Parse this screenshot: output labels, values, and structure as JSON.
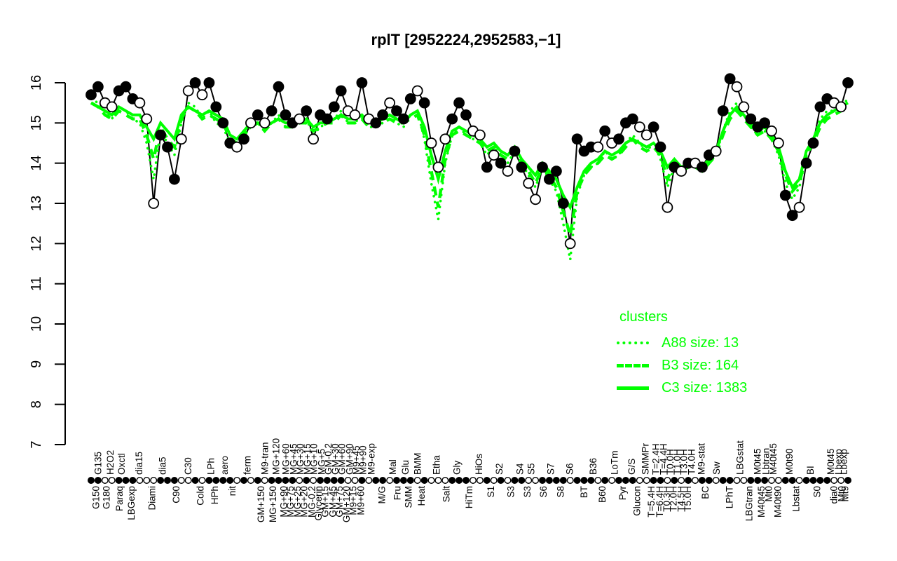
{
  "title": "rplT [2952224,2952583,−1]",
  "colors": {
    "cluster_green": "#00FF00",
    "point_black": "#000000",
    "background": "#FFFFFF"
  },
  "legend": {
    "title": "clusters",
    "entries": [
      {
        "label": "A88 size: 13",
        "style": "dotted"
      },
      {
        "label": "B3 size: 164",
        "style": "dashed"
      },
      {
        "label": "C3 size: 1383",
        "style": "solid"
      }
    ]
  },
  "chart_data": {
    "type": "line",
    "title": "rplT [2952224,2952583,−1]",
    "xlabel": "",
    "ylabel": "",
    "ylim": [
      7,
      16
    ],
    "yticks": [
      7,
      8,
      9,
      10,
      11,
      12,
      13,
      14,
      15,
      16
    ],
    "grid": false,
    "legend_position": "right-middle",
    "n_points": 110,
    "point_markers_segments": [
      "ffoofffooo",
      "fffoofofff",
      "fofofoffff",
      "ofoffffoof",
      "offofffofo",
      "oofffoofof",
      "offooffffo",
      "fffofofffo",
      "offofofoff",
      "offoofffoo",
      "ffoffffoof"
    ],
    "series": [
      {
        "name": "expression",
        "type": "line+markers",
        "style": "solid",
        "color": "#000000",
        "values": [
          15.7,
          15.9,
          15.5,
          15.4,
          15.8,
          15.9,
          15.6,
          15.5,
          15.1,
          13.0,
          14.7,
          14.4,
          13.6,
          14.6,
          15.8,
          16.0,
          15.7,
          16.0,
          15.4,
          15.0,
          14.5,
          14.4,
          14.6,
          15.0,
          15.2,
          15.0,
          15.3,
          15.9,
          15.2,
          15.0,
          15.1,
          15.3,
          14.6,
          15.2,
          15.1,
          15.4,
          15.8,
          15.3,
          15.2,
          16.0,
          15.1,
          15.0,
          15.2,
          15.5,
          15.3,
          15.1,
          15.6,
          15.8,
          15.5,
          14.5,
          13.9,
          14.6,
          15.1,
          15.5,
          15.2,
          14.8,
          14.7,
          13.9,
          14.2,
          14.0,
          13.8,
          14.3,
          13.9,
          13.5,
          13.1,
          13.9,
          13.6,
          13.8,
          13.0,
          12.0,
          14.6,
          14.3,
          14.4,
          14.4,
          14.8,
          14.5,
          14.6,
          15.0,
          15.1,
          14.9,
          14.7,
          14.9,
          14.4,
          12.9,
          13.9,
          13.8,
          14.0,
          14.0,
          13.9,
          14.2,
          14.3,
          15.3,
          16.1,
          15.9,
          15.4,
          15.1,
          14.9,
          15.0,
          14.8,
          14.5,
          13.2,
          12.7,
          12.9,
          14.0,
          14.5,
          15.4,
          15.6,
          15.5,
          15.4,
          16.0
        ]
      },
      {
        "name": "A88 size: 13",
        "type": "line",
        "style": "dotted",
        "color": "#00FF00",
        "values": [
          15.6,
          15.5,
          15.3,
          15.1,
          15.4,
          15.3,
          15.1,
          15.0,
          14.5,
          13.6,
          14.8,
          14.5,
          14.2,
          15.0,
          15.5,
          15.4,
          15.1,
          15.3,
          15.0,
          14.9,
          14.5,
          14.4,
          14.7,
          14.9,
          15.0,
          14.8,
          15.0,
          15.2,
          14.9,
          14.9,
          15.0,
          15.1,
          14.7,
          14.9,
          15.0,
          15.1,
          15.3,
          15.0,
          15.0,
          15.2,
          14.9,
          14.9,
          15.0,
          15.2,
          15.0,
          14.9,
          15.2,
          15.3,
          14.6,
          13.5,
          12.6,
          14.0,
          14.7,
          14.9,
          14.7,
          14.6,
          14.5,
          14.2,
          14.4,
          14.2,
          14.0,
          14.3,
          14.0,
          13.7,
          13.4,
          13.9,
          13.6,
          13.3,
          12.5,
          11.6,
          13.2,
          13.7,
          13.9,
          14.0,
          14.3,
          14.1,
          14.2,
          14.5,
          14.7,
          14.5,
          14.3,
          14.5,
          14.1,
          13.4,
          13.9,
          13.7,
          13.9,
          13.9,
          13.8,
          14.0,
          14.2,
          14.8,
          15.3,
          15.5,
          15.2,
          14.9,
          14.7,
          14.8,
          14.6,
          14.2,
          13.5,
          13.1,
          13.4,
          14.2,
          14.6,
          15.1,
          15.3,
          15.3,
          15.4,
          15.6
        ]
      },
      {
        "name": "B3 size: 164",
        "type": "line",
        "style": "dashed",
        "color": "#00FF00",
        "values": [
          15.5,
          15.4,
          15.2,
          15.1,
          15.3,
          15.2,
          15.1,
          15.1,
          14.7,
          14.1,
          14.9,
          14.6,
          14.4,
          15.1,
          15.4,
          15.3,
          15.1,
          15.2,
          15.1,
          15.0,
          14.6,
          14.5,
          14.7,
          14.9,
          15.0,
          14.8,
          15.0,
          15.1,
          14.9,
          14.9,
          15.0,
          15.0,
          14.8,
          14.9,
          15.0,
          15.0,
          15.2,
          15.0,
          15.0,
          15.1,
          14.9,
          15.0,
          15.0,
          15.1,
          15.0,
          15.0,
          15.1,
          15.2,
          14.7,
          13.8,
          12.9,
          14.1,
          14.7,
          14.8,
          14.7,
          14.6,
          14.5,
          14.3,
          14.4,
          14.2,
          14.1,
          14.3,
          14.0,
          13.8,
          13.5,
          13.9,
          13.7,
          13.4,
          12.8,
          12.2,
          13.3,
          13.7,
          13.9,
          14.0,
          14.2,
          14.1,
          14.2,
          14.4,
          14.6,
          14.4,
          14.3,
          14.4,
          14.2,
          13.6,
          14.0,
          13.8,
          13.9,
          13.9,
          13.8,
          14.0,
          14.2,
          14.7,
          15.1,
          15.3,
          15.1,
          14.9,
          14.7,
          14.8,
          14.6,
          14.3,
          13.7,
          13.3,
          13.5,
          14.2,
          14.5,
          14.9,
          15.1,
          15.2,
          15.3,
          15.4
        ]
      },
      {
        "name": "C3 size: 1383",
        "type": "line",
        "style": "solid",
        "color": "#00FF00",
        "values": [
          15.5,
          15.4,
          15.3,
          15.2,
          15.4,
          15.3,
          15.2,
          15.2,
          14.9,
          14.6,
          15.0,
          14.8,
          14.6,
          15.2,
          15.4,
          15.3,
          15.2,
          15.3,
          15.2,
          15.1,
          14.7,
          14.6,
          14.8,
          15.0,
          15.0,
          14.9,
          15.0,
          15.1,
          15.0,
          15.0,
          15.0,
          15.1,
          14.9,
          15.0,
          15.0,
          15.1,
          15.2,
          15.1,
          15.1,
          15.2,
          15.0,
          15.0,
          15.1,
          15.2,
          15.1,
          15.0,
          15.2,
          15.3,
          14.9,
          14.2,
          13.6,
          14.3,
          14.8,
          14.9,
          14.8,
          14.7,
          14.6,
          14.4,
          14.5,
          14.3,
          14.2,
          14.4,
          14.1,
          13.9,
          13.7,
          14.0,
          13.8,
          13.6,
          13.2,
          12.9,
          13.4,
          13.8,
          14.0,
          14.1,
          14.3,
          14.2,
          14.3,
          14.5,
          14.6,
          14.5,
          14.4,
          14.5,
          14.3,
          13.9,
          14.1,
          13.9,
          14.0,
          14.0,
          13.9,
          14.1,
          14.3,
          14.8,
          15.2,
          15.4,
          15.2,
          15.0,
          14.8,
          14.9,
          14.7,
          14.4,
          13.8,
          13.4,
          13.6,
          14.3,
          14.6,
          15.0,
          15.2,
          15.3,
          15.4,
          15.5
        ]
      }
    ],
    "x_labels_top": [
      [
        0.009,
        "G135"
      ],
      [
        0.025,
        "H2O2"
      ],
      [
        0.04,
        "Oxctl"
      ],
      [
        0.063,
        "dia15"
      ],
      [
        0.094,
        "dia5"
      ],
      [
        0.128,
        "C30"
      ],
      [
        0.158,
        "LPh"
      ],
      [
        0.176,
        "aero"
      ],
      [
        0.206,
        "ferm"
      ],
      [
        0.229,
        "M9-tran"
      ],
      [
        0.244,
        "MG+120"
      ],
      [
        0.257,
        "MG+60"
      ],
      [
        0.267,
        "MG+45"
      ],
      [
        0.276,
        "MG+30"
      ],
      [
        0.285,
        "MG+15"
      ],
      [
        0.294,
        "MG+10"
      ],
      [
        0.304,
        "MG+5"
      ],
      [
        0.313,
        "GM-0.2"
      ],
      [
        0.322,
        "GM+30"
      ],
      [
        0.331,
        "GM+60"
      ],
      [
        0.341,
        "GM+90"
      ],
      [
        0.35,
        "M9+45"
      ],
      [
        0.359,
        "M9+90"
      ],
      [
        0.37,
        "M9-exp"
      ],
      [
        0.398,
        "Mal"
      ],
      [
        0.415,
        "Glu"
      ],
      [
        0.431,
        "BMM"
      ],
      [
        0.456,
        "Etha"
      ],
      [
        0.483,
        "Gly"
      ],
      [
        0.512,
        "HiOs"
      ],
      [
        0.539,
        "S2"
      ],
      [
        0.566,
        "S4"
      ],
      [
        0.581,
        "S5"
      ],
      [
        0.607,
        "S7"
      ],
      [
        0.632,
        "S6"
      ],
      [
        0.663,
        "B36"
      ],
      [
        0.691,
        "LoTm"
      ],
      [
        0.714,
        "G/S"
      ],
      [
        0.732,
        "SMMPr"
      ],
      [
        0.746,
        "T=2.4H"
      ],
      [
        0.756,
        "T=4.4H"
      ],
      [
        0.765,
        "T0.0H"
      ],
      [
        0.774,
        "T1.0H"
      ],
      [
        0.783,
        "T3.0H"
      ],
      [
        0.793,
        "T4.0H"
      ],
      [
        0.806,
        "M9-stat"
      ],
      [
        0.826,
        "Sw"
      ],
      [
        0.857,
        "LBGstat"
      ],
      [
        0.88,
        "M0t45"
      ],
      [
        0.891,
        "Lbtran"
      ],
      [
        0.901,
        "M40t45"
      ],
      [
        0.922,
        "M0t90"
      ],
      [
        0.95,
        "BI"
      ],
      [
        0.977,
        "M0t45"
      ],
      [
        0.987,
        "Lbexp"
      ],
      [
        0.994,
        "Lbexp"
      ]
    ],
    "x_labels_bottom": [
      [
        0.006,
        "G150"
      ],
      [
        0.02,
        "G180"
      ],
      [
        0.037,
        "Paraq"
      ],
      [
        0.053,
        "LBGexp"
      ],
      [
        0.08,
        "Diami"
      ],
      [
        0.112,
        "C90"
      ],
      [
        0.144,
        "Cold"
      ],
      [
        0.163,
        "HPh"
      ],
      [
        0.186,
        "nit"
      ],
      [
        0.224,
        "GM+150"
      ],
      [
        0.24,
        "MG+150"
      ],
      [
        0.254,
        "MG+90"
      ],
      [
        0.263,
        "MG+75"
      ],
      [
        0.272,
        "MG+25"
      ],
      [
        0.281,
        "MG+20"
      ],
      [
        0.291,
        "MG-0.2"
      ],
      [
        0.3,
        "Glycerin"
      ],
      [
        0.309,
        "GM+15"
      ],
      [
        0.319,
        "GM+45"
      ],
      [
        0.328,
        "GM+75"
      ],
      [
        0.337,
        "GM+120"
      ],
      [
        0.346,
        "M9+15"
      ],
      [
        0.356,
        "M9+60"
      ],
      [
        0.384,
        "M/G"
      ],
      [
        0.404,
        "Fru"
      ],
      [
        0.419,
        "SMM"
      ],
      [
        0.436,
        "Heat"
      ],
      [
        0.469,
        "Salt"
      ],
      [
        0.499,
        "HiTm"
      ],
      [
        0.528,
        "S1"
      ],
      [
        0.554,
        "S3"
      ],
      [
        0.576,
        "S3"
      ],
      [
        0.597,
        "S6"
      ],
      [
        0.62,
        "S8"
      ],
      [
        0.651,
        "BT"
      ],
      [
        0.675,
        "B60"
      ],
      [
        0.702,
        "Pyr"
      ],
      [
        0.721,
        "Glucon"
      ],
      [
        0.74,
        "T=5.4H"
      ],
      [
        0.751,
        "T=6.4H"
      ],
      [
        0.76,
        "T0.3H"
      ],
      [
        0.769,
        "T2.0H"
      ],
      [
        0.779,
        "T4.5H"
      ],
      [
        0.788,
        "T5.0H"
      ],
      [
        0.811,
        "BC"
      ],
      [
        0.843,
        "LPhT"
      ],
      [
        0.869,
        "LBGtran"
      ],
      [
        0.885,
        "M40t45"
      ],
      [
        0.895,
        "Mt0"
      ],
      [
        0.907,
        "M40t90"
      ],
      [
        0.931,
        "Lbstat"
      ],
      [
        0.959,
        "S0"
      ],
      [
        0.981,
        "dia0"
      ],
      [
        0.991,
        "Mt0"
      ],
      [
        0.996,
        "Mt9"
      ]
    ]
  }
}
